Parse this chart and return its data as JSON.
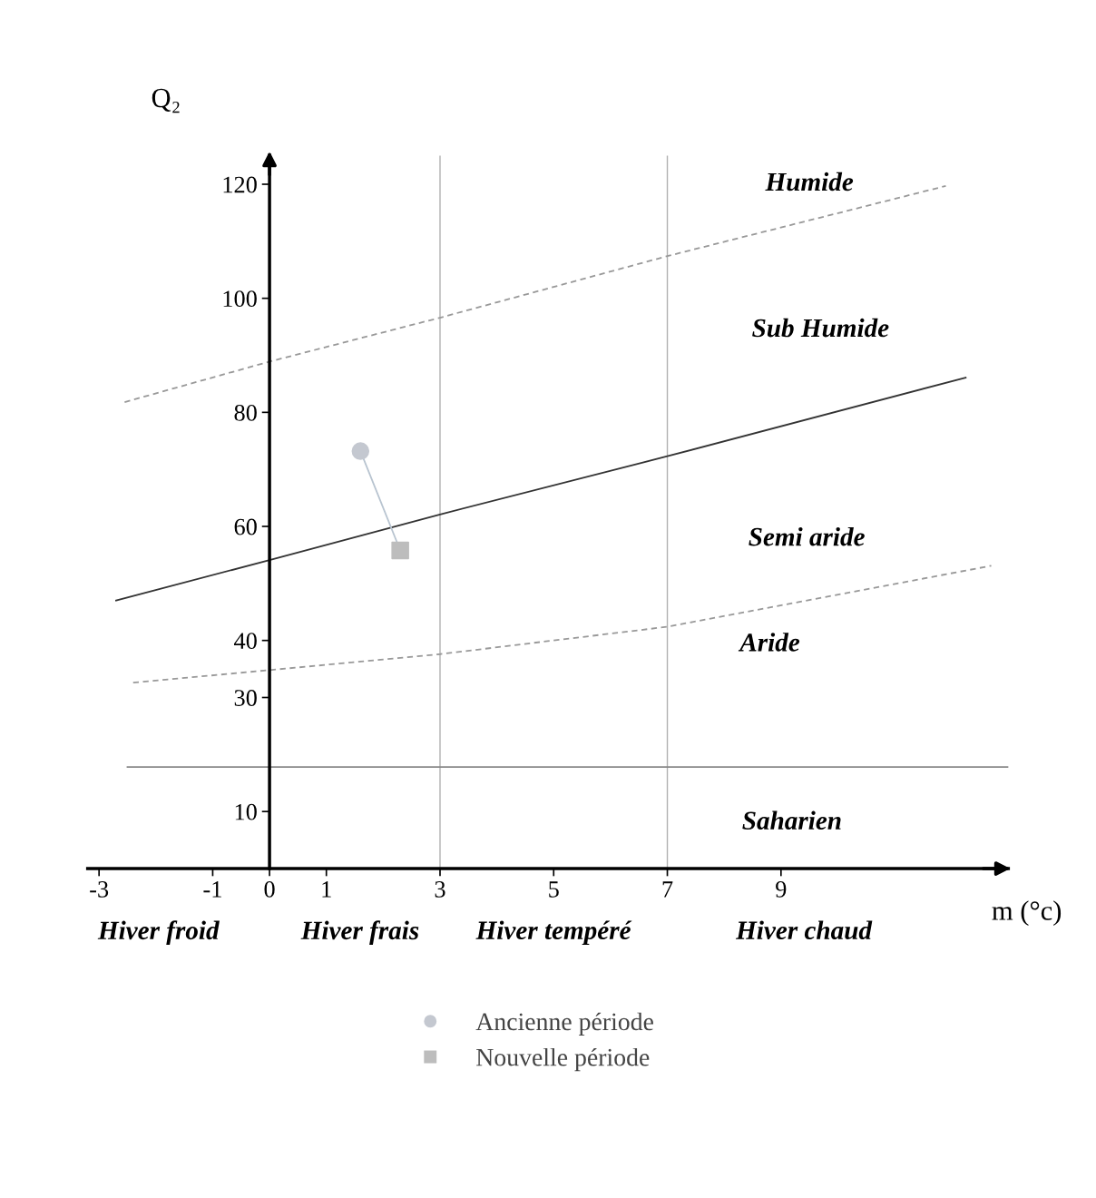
{
  "chart_data": {
    "type": "line",
    "xlabel": "m (°c)",
    "ylabel": "Q₂",
    "xlim": [
      -3.2,
      13.0
    ],
    "ylim": [
      0,
      125
    ],
    "xticks": [
      -3,
      -1,
      0,
      1,
      3,
      5,
      7,
      9
    ],
    "yticks": [
      10,
      30,
      40,
      60,
      80,
      100,
      120
    ],
    "grid": false,
    "legend": "bottom",
    "series": [
      {
        "color": "#999999",
        "line_style": "dashed",
        "x": [
          -2.55,
          0,
          3,
          7,
          11.9
        ],
        "values": [
          81.8,
          88.9,
          96.6,
          107.4,
          119.7
        ]
      },
      {
        "color": "#333333",
        "line_style": "solid",
        "x": [
          -2.7,
          0,
          3,
          7,
          12.25
        ],
        "values": [
          47.0,
          54.1,
          62.1,
          72.3,
          86.1
        ]
      },
      {
        "color": "#999999",
        "line_style": "dashed",
        "x": [
          -2.4,
          0,
          3,
          7,
          12.7
        ],
        "values": [
          32.6,
          34.8,
          37.6,
          42.4,
          53.1
        ]
      },
      {
        "color": "#888888",
        "line_style": "solid",
        "x": [
          -2.5,
          13.0
        ],
        "values": [
          17.8,
          17.8
        ]
      },
      {
        "color": "#b8c4d0",
        "line_style": "solid",
        "x": [
          1.6,
          2.3
        ],
        "values": [
          73.2,
          55.8
        ]
      },
      {
        "type": "scatter",
        "name": "Ancienne période",
        "color": "#c4c8d0",
        "marker": "circle",
        "x": [
          1.6
        ],
        "values": [
          73.2
        ]
      },
      {
        "type": "scatter",
        "name": "Nouvelle période",
        "color": "#bdbdbd",
        "marker": "square",
        "x": [
          2.3
        ],
        "values": [
          55.8
        ]
      }
    ],
    "ref_lines": [
      {
        "axis": "x",
        "value": 3,
        "color": "#b0b0b0"
      },
      {
        "axis": "x",
        "value": 7,
        "color": "#b0b0b0"
      }
    ],
    "annotations": [
      "Humide",
      "Sub Humide",
      "Semi aride",
      "Aride",
      "Saharien",
      "Hiver froid",
      "Hiver frais",
      "Hiver tempéré",
      "Hiver chaud"
    ]
  }
}
